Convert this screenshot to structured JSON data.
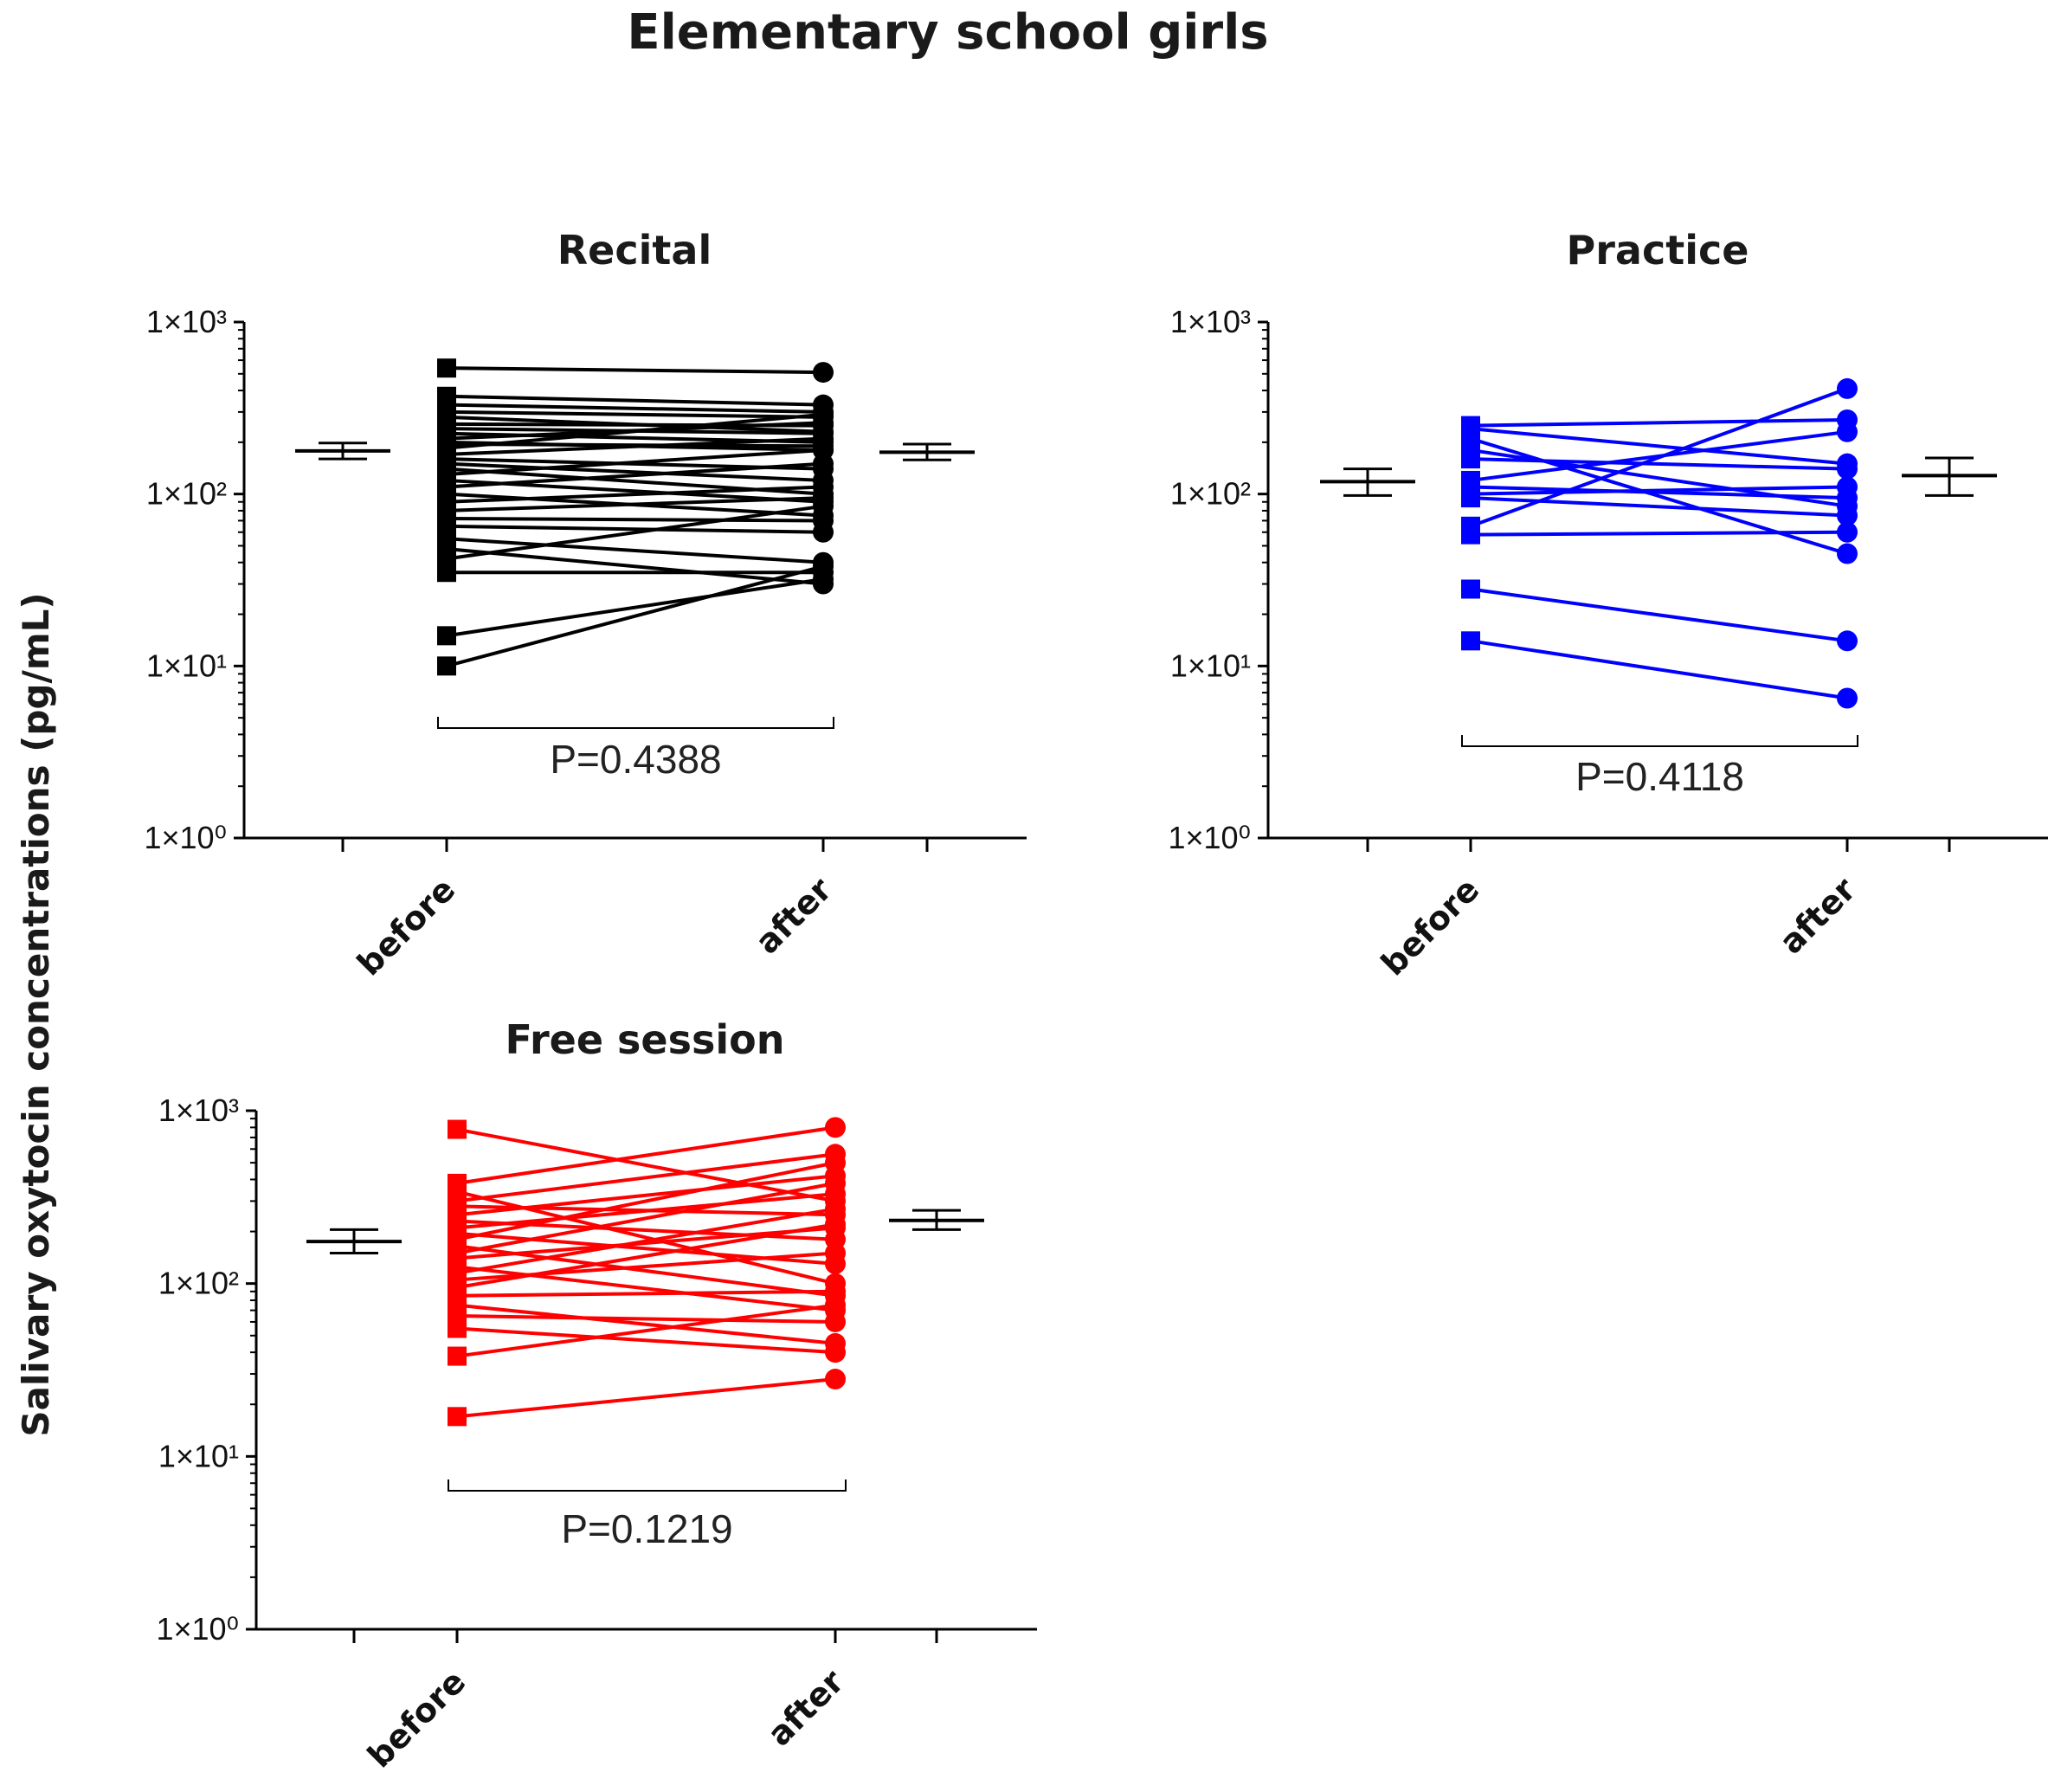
{
  "figure_title": "Elementary school girls",
  "y_axis_label": "Salivary oxytocin concentrations (pg/mL)",
  "chart_data": [
    {
      "type": "paired-scatter",
      "title": "Recital",
      "color": "#000000",
      "yscale": "log10",
      "ylim": [
        1,
        1000
      ],
      "ytick_labels": [
        "1×10⁰",
        "1×10¹",
        "1×10²",
        "1×10³"
      ],
      "categories": [
        "before",
        "after"
      ],
      "p_value_label": "P=0.4388",
      "summary": {
        "before": {
          "mean": 178,
          "lower": 160,
          "upper": 198
        },
        "after": {
          "mean": 175,
          "lower": 158,
          "upper": 195
        }
      },
      "pairs": [
        [
          540,
          510
        ],
        [
          370,
          330
        ],
        [
          330,
          300
        ],
        [
          300,
          280
        ],
        [
          280,
          230
        ],
        [
          255,
          250
        ],
        [
          240,
          225
        ],
        [
          225,
          200
        ],
        [
          210,
          260
        ],
        [
          200,
          180
        ],
        [
          195,
          190
        ],
        [
          185,
          290
        ],
        [
          170,
          210
        ],
        [
          160,
          140
        ],
        [
          150,
          120
        ],
        [
          140,
          100
        ],
        [
          130,
          180
        ],
        [
          120,
          90
        ],
        [
          110,
          150
        ],
        [
          100,
          75
        ],
        [
          90,
          110
        ],
        [
          80,
          95
        ],
        [
          72,
          70
        ],
        [
          65,
          60
        ],
        [
          55,
          40
        ],
        [
          48,
          30
        ],
        [
          42,
          85
        ],
        [
          35,
          35
        ],
        [
          15,
          32
        ],
        [
          10,
          38
        ]
      ]
    },
    {
      "type": "paired-scatter",
      "title": "Practice",
      "color": "#0000ff",
      "yscale": "log10",
      "ylim": [
        1,
        1000
      ],
      "ytick_labels": [
        "1×10⁰",
        "1×10¹",
        "1×10²",
        "1×10³"
      ],
      "categories": [
        "before",
        "after"
      ],
      "p_value_label": "P=0.4118",
      "summary": {
        "before": {
          "mean": 118,
          "lower": 98,
          "upper": 140
        },
        "after": {
          "mean": 128,
          "lower": 98,
          "upper": 162
        }
      },
      "pairs": [
        [
          250,
          270
        ],
        [
          240,
          150
        ],
        [
          210,
          45
        ],
        [
          180,
          85
        ],
        [
          160,
          140
        ],
        [
          120,
          230
        ],
        [
          110,
          95
        ],
        [
          100,
          110
        ],
        [
          95,
          75
        ],
        [
          65,
          410
        ],
        [
          58,
          60
        ],
        [
          28,
          14
        ],
        [
          14,
          6.5
        ]
      ]
    },
    {
      "type": "paired-scatter",
      "title": "Free session",
      "color": "#ff0000",
      "yscale": "log10",
      "ylim": [
        1,
        1000
      ],
      "ytick_labels": [
        "1×10⁰",
        "1×10¹",
        "1×10²",
        "1×10³"
      ],
      "categories": [
        "before",
        "after"
      ],
      "p_value_label": "P=0.1219",
      "summary": {
        "before": {
          "mean": 175,
          "lower": 150,
          "upper": 205
        },
        "after": {
          "mean": 232,
          "lower": 205,
          "upper": 265
        }
      },
      "pairs": [
        [
          780,
          300
        ],
        [
          380,
          800
        ],
        [
          340,
          100
        ],
        [
          300,
          560
        ],
        [
          280,
          250
        ],
        [
          250,
          420
        ],
        [
          230,
          180
        ],
        [
          210,
          330
        ],
        [
          195,
          130
        ],
        [
          180,
          500
        ],
        [
          165,
          85
        ],
        [
          150,
          380
        ],
        [
          140,
          210
        ],
        [
          125,
          70
        ],
        [
          115,
          270
        ],
        [
          105,
          150
        ],
        [
          95,
          220
        ],
        [
          85,
          90
        ],
        [
          75,
          45
        ],
        [
          65,
          60
        ],
        [
          55,
          40
        ],
        [
          38,
          75
        ],
        [
          17,
          28
        ]
      ]
    }
  ]
}
